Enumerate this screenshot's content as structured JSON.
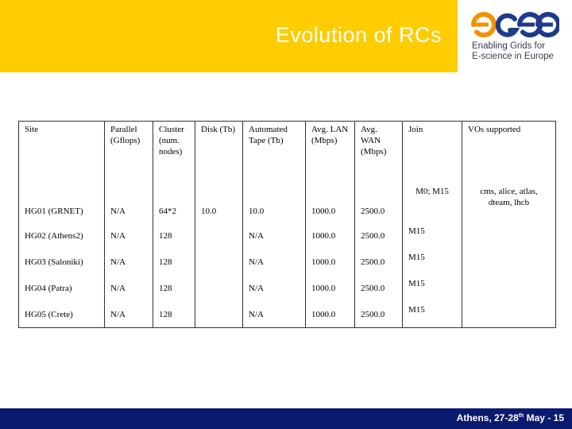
{
  "header": {
    "title": "Evolution of RCs",
    "colors": {
      "band": "#ffcc00",
      "footer": "#0a1a6e",
      "logo_orange": "#f39200",
      "logo_blue": "#1e3a8a"
    }
  },
  "logo": {
    "wordmark": "egee",
    "tagline_line1": "Enabling Grids for",
    "tagline_line2": "E-science in Europe"
  },
  "table": {
    "columns": [
      "Site",
      "Parallel (Gflops)",
      "Cluster (num. nodes)",
      "Disk (Tb)",
      "Automated Tape (Tb)",
      "Avg. LAN (Mbps)",
      "Avg. WAN (Mbps)",
      "Join",
      "VOs supported"
    ],
    "rows": [
      {
        "site": "HG01 (GRNET)",
        "parallel": "N/A",
        "cluster": "64*2",
        "disk": "10.0",
        "tape": "10.0",
        "lan": "1000.0",
        "wan": "2500.0",
        "join": "M0; M15",
        "vos": "cms, alice, atlas, dteam, lhcb"
      },
      {
        "site": "HG02 (Athens2)",
        "parallel": "N/A",
        "cluster": "128",
        "disk": "",
        "tape": "N/A",
        "lan": "1000.0",
        "wan": "2500.0",
        "join": "M15",
        "vos": ""
      },
      {
        "site": "HG03 (Saloniki)",
        "parallel": "N/A",
        "cluster": "128",
        "disk": "",
        "tape": "N/A",
        "lan": "1000.0",
        "wan": "2500.0",
        "join": "M15",
        "vos": ""
      },
      {
        "site": "HG04 (Patra)",
        "parallel": "N/A",
        "cluster": "128",
        "disk": "",
        "tape": "N/A",
        "lan": "1000.0",
        "wan": "2500.0",
        "join": "M15",
        "vos": ""
      },
      {
        "site": "HG05 (Crete)",
        "parallel": "N/A",
        "cluster": "128",
        "disk": "",
        "tape": "N/A",
        "lan": "1000.0",
        "wan": "2500.0",
        "join": "M15",
        "vos": ""
      }
    ]
  },
  "footer": {
    "location": "Athens, 27-28",
    "superscript": "th",
    "month": " May",
    "page_label": " - 15"
  }
}
